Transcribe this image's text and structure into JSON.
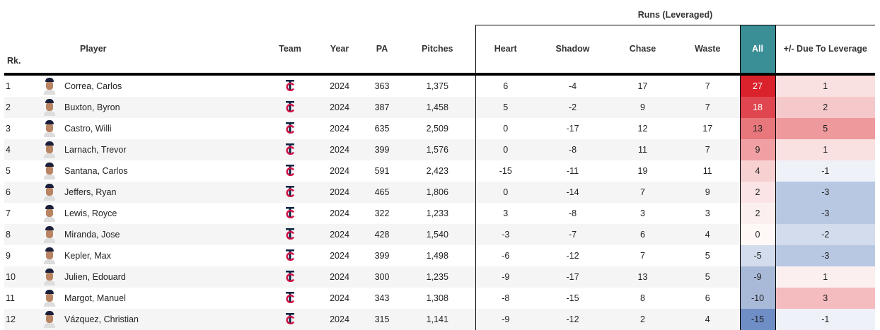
{
  "group_header": "Runs (Leveraged)",
  "columns": {
    "rk": "Rk.",
    "player": "Player",
    "team": "Team",
    "year": "Year",
    "pa": "PA",
    "pitches": "Pitches",
    "heart": "Heart",
    "shadow": "Shadow",
    "chase": "Chase",
    "waste": "Waste",
    "all": "All",
    "leverage": "+/- Due To Leverage"
  },
  "team_logo": "twins-tc-logo",
  "rows": [
    {
      "rk": "1",
      "player": "Correa, Carlos",
      "year": "2024",
      "pa": "363",
      "pitches": "1,375",
      "heart": "6",
      "shadow": "-4",
      "chase": "17",
      "waste": "7",
      "all": "27",
      "all_color": "#d9222c",
      "all_text": "#ffffff",
      "lev": "1",
      "lev_color": "#f9e1e2"
    },
    {
      "rk": "2",
      "player": "Buxton, Byron",
      "year": "2024",
      "pa": "387",
      "pitches": "1,458",
      "heart": "5",
      "shadow": "-2",
      "chase": "9",
      "waste": "7",
      "all": "18",
      "all_color": "#e0464f",
      "all_text": "#ffffff",
      "lev": "2",
      "lev_color": "#f5c9ca"
    },
    {
      "rk": "3",
      "player": "Castro, Willi",
      "year": "2024",
      "pa": "635",
      "pitches": "2,509",
      "heart": "0",
      "shadow": "-17",
      "chase": "12",
      "waste": "17",
      "all": "13",
      "all_color": "#e8777c",
      "all_text": "#222222",
      "lev": "5",
      "lev_color": "#ee9a9d"
    },
    {
      "rk": "4",
      "player": "Larnach, Trevor",
      "year": "2024",
      "pa": "399",
      "pitches": "1,576",
      "heart": "0",
      "shadow": "-8",
      "chase": "11",
      "waste": "7",
      "all": "9",
      "all_color": "#f0a0a3",
      "all_text": "#222222",
      "lev": "1",
      "lev_color": "#f9e1e2"
    },
    {
      "rk": "5",
      "player": "Santana, Carlos",
      "year": "2024",
      "pa": "591",
      "pitches": "2,423",
      "heart": "-15",
      "shadow": "-11",
      "chase": "19",
      "waste": "11",
      "all": "4",
      "all_color": "#f7d0d1",
      "all_text": "#222222",
      "lev": "-1",
      "lev_color": "#eef2f8"
    },
    {
      "rk": "6",
      "player": "Jeffers, Ryan",
      "year": "2024",
      "pa": "465",
      "pitches": "1,806",
      "heart": "0",
      "shadow": "-14",
      "chase": "7",
      "waste": "9",
      "all": "2",
      "all_color": "#fbe4e5",
      "all_text": "#222222",
      "lev": "-3",
      "lev_color": "#b8c8e2"
    },
    {
      "rk": "7",
      "player": "Lewis, Royce",
      "year": "2024",
      "pa": "322",
      "pitches": "1,233",
      "heart": "3",
      "shadow": "-8",
      "chase": "3",
      "waste": "3",
      "all": "2",
      "all_color": "#fcefef",
      "all_text": "#222222",
      "lev": "-3",
      "lev_color": "#b8c8e2"
    },
    {
      "rk": "8",
      "player": "Miranda, Jose",
      "year": "2024",
      "pa": "428",
      "pitches": "1,540",
      "heart": "-3",
      "shadow": "-7",
      "chase": "6",
      "waste": "4",
      "all": "0",
      "all_color": "#fff8f7",
      "all_text": "#222222",
      "lev": "-2",
      "lev_color": "#d3dcec"
    },
    {
      "rk": "9",
      "player": "Kepler, Max",
      "year": "2024",
      "pa": "399",
      "pitches": "1,498",
      "heart": "-6",
      "shadow": "-12",
      "chase": "7",
      "waste": "5",
      "all": "-5",
      "all_color": "#d3dcec",
      "all_text": "#222222",
      "lev": "-3",
      "lev_color": "#b8c8e2"
    },
    {
      "rk": "10",
      "player": "Julien, Edouard",
      "year": "2024",
      "pa": "300",
      "pitches": "1,235",
      "heart": "-9",
      "shadow": "-17",
      "chase": "13",
      "waste": "5",
      "all": "-9",
      "all_color": "#a9bad9",
      "all_text": "#222222",
      "lev": "1",
      "lev_color": "#fcefef"
    },
    {
      "rk": "11",
      "player": "Margot, Manuel",
      "year": "2024",
      "pa": "343",
      "pitches": "1,308",
      "heart": "-8",
      "shadow": "-15",
      "chase": "8",
      "waste": "6",
      "all": "-10",
      "all_color": "#a9bad9",
      "all_text": "#222222",
      "lev": "3",
      "lev_color": "#f4bcbf"
    },
    {
      "rk": "12",
      "player": "Vázquez, Christian",
      "year": "2024",
      "pa": "315",
      "pitches": "1,141",
      "heart": "-9",
      "shadow": "-12",
      "chase": "2",
      "waste": "4",
      "all": "-15",
      "all_color": "#6f8ec6",
      "all_text": "#222222",
      "lev": "-1",
      "lev_color": "#eef2f8"
    }
  ]
}
